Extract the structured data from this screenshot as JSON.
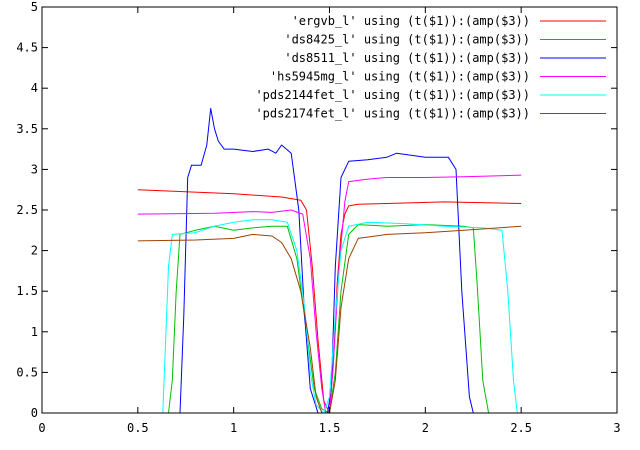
{
  "chart_data": {
    "type": "line",
    "title": "",
    "xlabel": "",
    "ylabel": "",
    "xlim": [
      0,
      3
    ],
    "ylim": [
      0,
      5
    ],
    "x_ticks": [
      "0",
      "0.5",
      "1",
      "1.5",
      "2",
      "2.5",
      "3"
    ],
    "y_ticks": [
      "0",
      "0.5",
      "1",
      "1.5",
      "2",
      "2.5",
      "3",
      "3.5",
      "4",
      "4.5",
      "5"
    ],
    "grid": false,
    "legend_position": "top-right",
    "series": [
      {
        "name": "'ergvb_l'       using (t($1)):(amp($3))",
        "color": "#ff0000",
        "points": [
          [
            0.5,
            2.75
          ],
          [
            1.0,
            2.7
          ],
          [
            1.25,
            2.66
          ],
          [
            1.35,
            2.62
          ],
          [
            1.38,
            2.5
          ],
          [
            1.41,
            1.8
          ],
          [
            1.44,
            0.9
          ],
          [
            1.47,
            0.15
          ],
          [
            1.5,
            0.0
          ],
          [
            1.52,
            0.6
          ],
          [
            1.54,
            1.6
          ],
          [
            1.56,
            2.2
          ],
          [
            1.58,
            2.45
          ],
          [
            1.6,
            2.55
          ],
          [
            1.65,
            2.57
          ],
          [
            1.8,
            2.58
          ],
          [
            2.1,
            2.6
          ],
          [
            2.5,
            2.58
          ]
        ]
      },
      {
        "name": "'ds8425_l'      using (t($1)):(amp($3))",
        "color": "#00c000",
        "points": [
          [
            0.5,
            0.0
          ],
          [
            0.66,
            0.0
          ],
          [
            0.68,
            0.4
          ],
          [
            0.7,
            1.5
          ],
          [
            0.72,
            2.2
          ],
          [
            0.8,
            2.25
          ],
          [
            0.9,
            2.3
          ],
          [
            1.0,
            2.25
          ],
          [
            1.1,
            2.28
          ],
          [
            1.2,
            2.3
          ],
          [
            1.28,
            2.3
          ],
          [
            1.33,
            1.9
          ],
          [
            1.38,
            1.0
          ],
          [
            1.42,
            0.3
          ],
          [
            1.46,
            0.05
          ],
          [
            1.5,
            0.0
          ],
          [
            1.53,
            0.5
          ],
          [
            1.56,
            1.5
          ],
          [
            1.6,
            2.2
          ],
          [
            1.65,
            2.32
          ],
          [
            1.8,
            2.3
          ],
          [
            2.0,
            2.32
          ],
          [
            2.2,
            2.3
          ],
          [
            2.25,
            2.28
          ],
          [
            2.27,
            1.6
          ],
          [
            2.3,
            0.4
          ],
          [
            2.33,
            0.0
          ],
          [
            2.5,
            0.0
          ]
        ]
      },
      {
        "name": "'ds8511_l'      using (t($1)):(amp($3))",
        "color": "#0000ff",
        "points": [
          [
            0.5,
            0.0
          ],
          [
            0.72,
            0.0
          ],
          [
            0.74,
            1.2
          ],
          [
            0.76,
            2.9
          ],
          [
            0.78,
            3.05
          ],
          [
            0.83,
            3.05
          ],
          [
            0.86,
            3.3
          ],
          [
            0.88,
            3.75
          ],
          [
            0.9,
            3.5
          ],
          [
            0.92,
            3.35
          ],
          [
            0.95,
            3.25
          ],
          [
            1.0,
            3.25
          ],
          [
            1.1,
            3.22
          ],
          [
            1.18,
            3.25
          ],
          [
            1.22,
            3.2
          ],
          [
            1.25,
            3.3
          ],
          [
            1.3,
            3.2
          ],
          [
            1.34,
            2.5
          ],
          [
            1.37,
            1.2
          ],
          [
            1.4,
            0.3
          ],
          [
            1.44,
            0.0
          ],
          [
            1.49,
            0.0
          ],
          [
            1.51,
            0.3
          ],
          [
            1.53,
            1.8
          ],
          [
            1.56,
            2.9
          ],
          [
            1.6,
            3.1
          ],
          [
            1.7,
            3.12
          ],
          [
            1.8,
            3.15
          ],
          [
            1.85,
            3.2
          ],
          [
            2.0,
            3.15
          ],
          [
            2.12,
            3.15
          ],
          [
            2.16,
            3.0
          ],
          [
            2.19,
            1.5
          ],
          [
            2.23,
            0.2
          ],
          [
            2.25,
            0.0
          ],
          [
            2.5,
            0.0
          ]
        ]
      },
      {
        "name": "'hs5945mg_l'    using (t($1)):(amp($3))",
        "color": "#ff00ff",
        "points": [
          [
            0.5,
            2.45
          ],
          [
            0.9,
            2.46
          ],
          [
            1.1,
            2.48
          ],
          [
            1.2,
            2.47
          ],
          [
            1.3,
            2.5
          ],
          [
            1.36,
            2.45
          ],
          [
            1.4,
            1.9
          ],
          [
            1.43,
            1.0
          ],
          [
            1.46,
            0.3
          ],
          [
            1.48,
            0.0
          ],
          [
            1.5,
            0.0
          ],
          [
            1.52,
            0.6
          ],
          [
            1.55,
            1.8
          ],
          [
            1.58,
            2.6
          ],
          [
            1.6,
            2.85
          ],
          [
            1.7,
            2.88
          ],
          [
            1.8,
            2.9
          ],
          [
            2.0,
            2.9
          ],
          [
            2.2,
            2.91
          ],
          [
            2.5,
            2.93
          ]
        ]
      },
      {
        "name": "'pds2144fet_l'  using (t($1)):(amp($3))",
        "color": "#00ffff",
        "points": [
          [
            0.5,
            0.0
          ],
          [
            0.63,
            0.0
          ],
          [
            0.64,
            0.6
          ],
          [
            0.66,
            1.8
          ],
          [
            0.68,
            2.2
          ],
          [
            0.8,
            2.22
          ],
          [
            0.9,
            2.3
          ],
          [
            1.0,
            2.35
          ],
          [
            1.1,
            2.38
          ],
          [
            1.2,
            2.38
          ],
          [
            1.28,
            2.35
          ],
          [
            1.33,
            2.0
          ],
          [
            1.37,
            1.3
          ],
          [
            1.4,
            0.5
          ],
          [
            1.43,
            0.1
          ],
          [
            1.47,
            0.0
          ],
          [
            1.5,
            0.2
          ],
          [
            1.53,
            1.2
          ],
          [
            1.56,
            2.0
          ],
          [
            1.6,
            2.3
          ],
          [
            1.7,
            2.35
          ],
          [
            1.9,
            2.33
          ],
          [
            2.1,
            2.3
          ],
          [
            2.3,
            2.28
          ],
          [
            2.4,
            2.25
          ],
          [
            2.43,
            1.5
          ],
          [
            2.46,
            0.4
          ],
          [
            2.48,
            0.0
          ],
          [
            2.5,
            0.0
          ]
        ]
      },
      {
        "name": "'pds2174fet_l'  using (t($1)):(amp($3))",
        "color": "#a04000",
        "points": [
          [
            0.5,
            2.12
          ],
          [
            0.8,
            2.13
          ],
          [
            1.0,
            2.15
          ],
          [
            1.1,
            2.2
          ],
          [
            1.2,
            2.18
          ],
          [
            1.25,
            2.1
          ],
          [
            1.3,
            1.9
          ],
          [
            1.35,
            1.5
          ],
          [
            1.4,
            0.8
          ],
          [
            1.43,
            0.2
          ],
          [
            1.46,
            0.0
          ],
          [
            1.5,
            0.0
          ],
          [
            1.53,
            0.4
          ],
          [
            1.56,
            1.3
          ],
          [
            1.6,
            1.9
          ],
          [
            1.65,
            2.15
          ],
          [
            1.8,
            2.2
          ],
          [
            2.0,
            2.22
          ],
          [
            2.2,
            2.25
          ],
          [
            2.5,
            2.3
          ]
        ]
      }
    ]
  }
}
